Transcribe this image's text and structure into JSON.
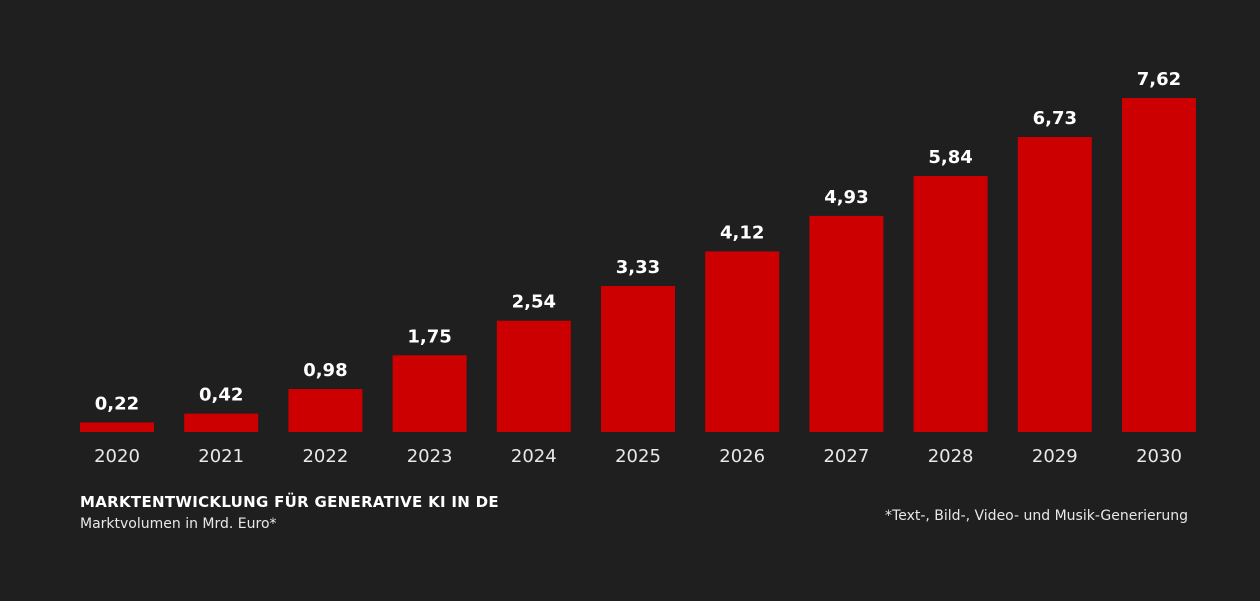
{
  "colors": {
    "background": "#1f1f1f",
    "bar": "#cc0000",
    "text": "#ffffff"
  },
  "chart_data": {
    "type": "bar",
    "title": "MARKTENTWICKLUNG FÜR GENERATIVE KI IN DE",
    "subtitle": "Marktvolumen in Mrd. Euro*",
    "footnote": "*Text-, Bild-, Video- und Musik-Generierung",
    "categories": [
      "2020",
      "2021",
      "2022",
      "2023",
      "2024",
      "2025",
      "2026",
      "2027",
      "2028",
      "2029",
      "2030"
    ],
    "values": [
      0.22,
      0.42,
      0.98,
      1.75,
      2.54,
      3.33,
      4.12,
      4.93,
      5.84,
      6.73,
      7.62
    ],
    "value_labels": [
      "0,22",
      "0,42",
      "0,98",
      "1,75",
      "2,54",
      "3,33",
      "4,12",
      "4,93",
      "5,84",
      "6,73",
      "7,62"
    ],
    "xlabel": "",
    "ylabel": "",
    "ylim": [
      0,
      7.62
    ],
    "grid": false,
    "legend": "none"
  }
}
